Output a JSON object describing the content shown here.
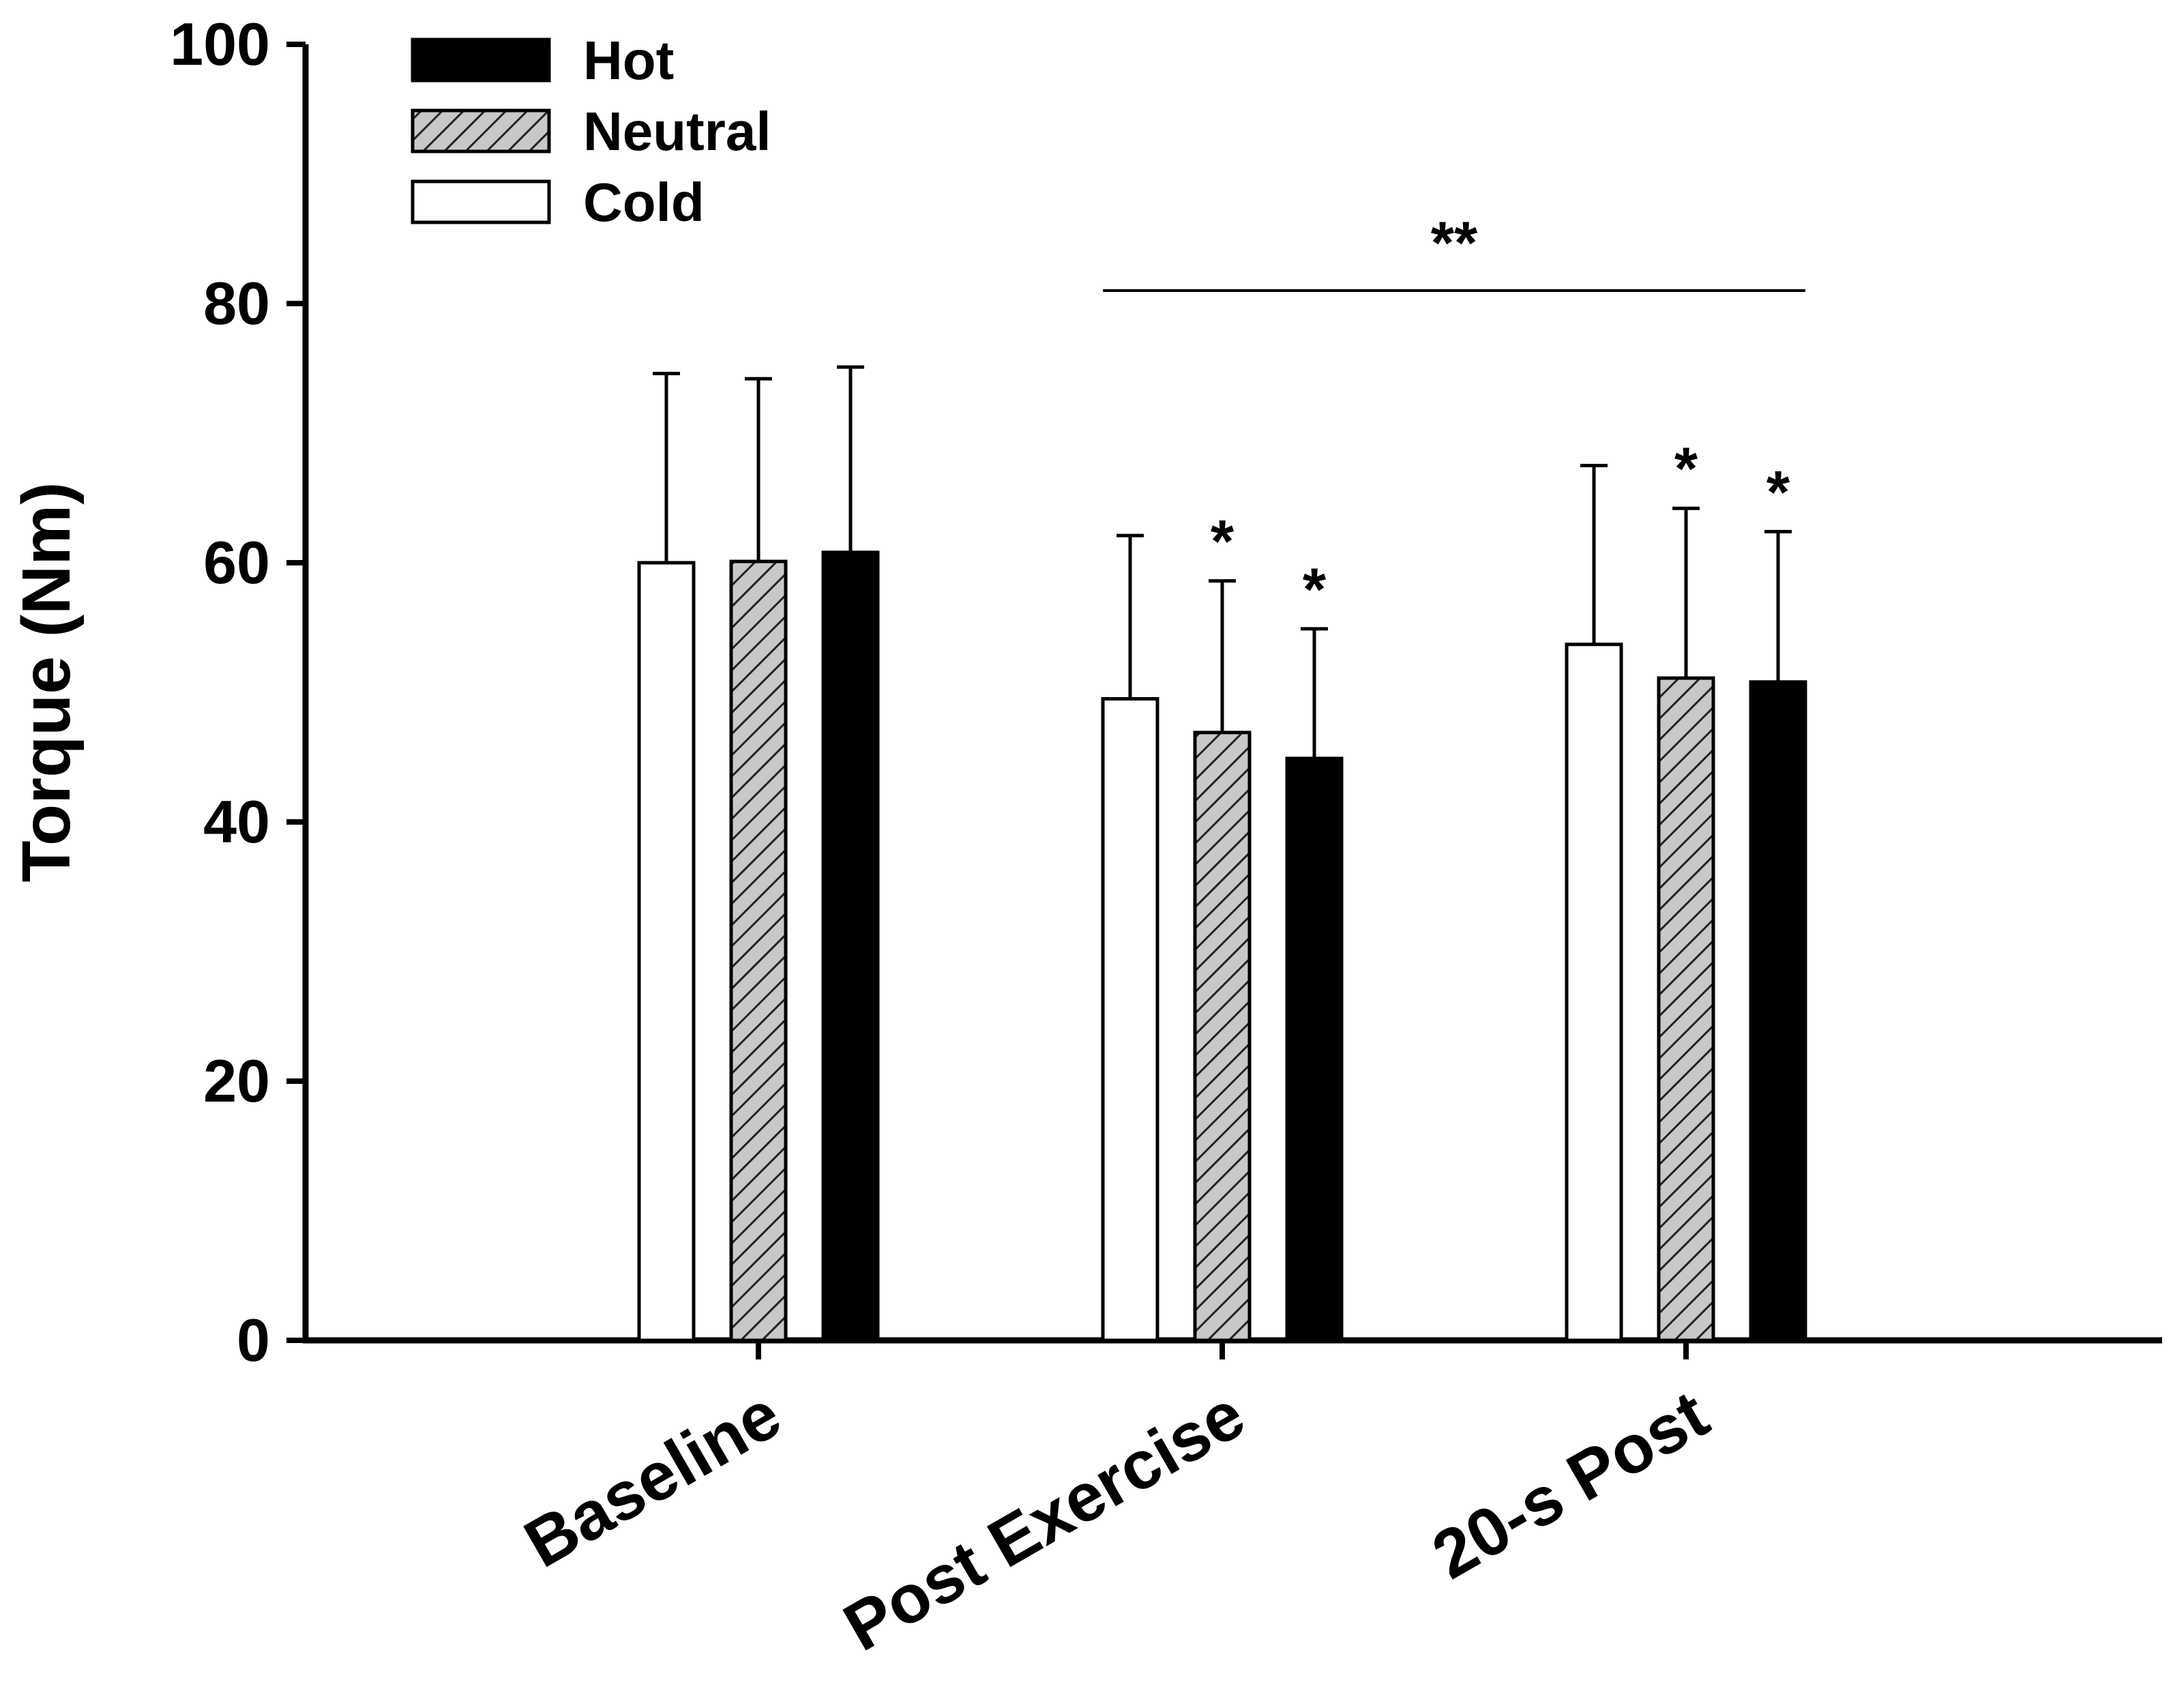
{
  "chart_data": {
    "type": "bar",
    "title": "",
    "xlabel": "",
    "ylabel": "Torque (Nm)",
    "ylim": [
      0,
      100
    ],
    "yticks": [
      0,
      20,
      40,
      60,
      80,
      100
    ],
    "categories": [
      "Baseline",
      "Post Exercise",
      "20-s Post"
    ],
    "series": [
      {
        "name": "Cold",
        "fill": "white",
        "values": [
          60.0,
          49.5,
          53.7
        ],
        "errors": [
          14.6,
          12.6,
          13.8
        ],
        "markers": [
          "",
          "",
          ""
        ]
      },
      {
        "name": "Neutral",
        "fill": "hatched",
        "values": [
          60.1,
          46.9,
          51.1
        ],
        "errors": [
          14.1,
          11.7,
          13.1
        ],
        "markers": [
          "",
          "*",
          "*"
        ]
      },
      {
        "name": "Hot",
        "fill": "black",
        "values": [
          60.8,
          44.9,
          50.8
        ],
        "errors": [
          14.3,
          10.0,
          11.6
        ],
        "markers": [
          "",
          "*",
          "*"
        ]
      }
    ],
    "legend": [
      {
        "name": "Hot",
        "fill": "black"
      },
      {
        "name": "Neutral",
        "fill": "hatched"
      },
      {
        "name": "Cold",
        "fill": "white"
      }
    ],
    "legend_position": "top-left",
    "bracket": {
      "label": "**",
      "value": 81,
      "from_category": "Post Exercise",
      "to_category": "20-s Post"
    }
  }
}
